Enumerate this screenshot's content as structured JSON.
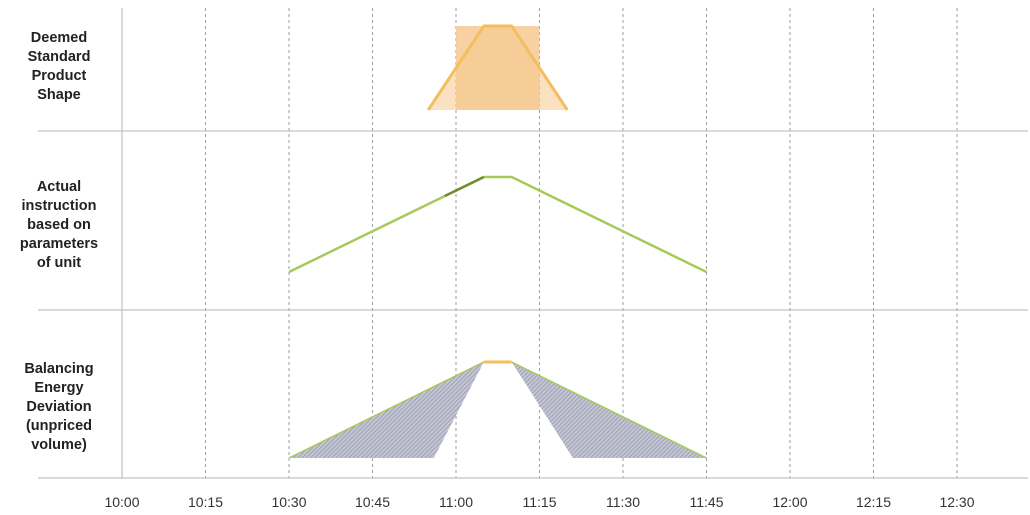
{
  "rows": [
    {
      "key": "deemed",
      "label_lines": [
        "Deemed",
        "Standard",
        "Product",
        "Shape"
      ]
    },
    {
      "key": "actual",
      "label_lines": [
        "Actual",
        "instruction",
        "based on",
        "parameters",
        "of unit"
      ]
    },
    {
      "key": "deviation",
      "label_lines": [
        "Balancing",
        "Energy",
        "Deviation",
        "(unpriced",
        "volume)"
      ]
    }
  ],
  "time_axis": {
    "ticks": [
      "10:00",
      "10:15",
      "10:30",
      "10:45",
      "11:00",
      "11:15",
      "11:30",
      "11:45",
      "12:00",
      "12:15",
      "12:30"
    ]
  },
  "series": {
    "deemed_shape": {
      "points": [
        [
          "10:55",
          0
        ],
        [
          "11:05",
          1
        ],
        [
          "11:10",
          1
        ],
        [
          "11:20",
          0
        ]
      ],
      "product_period": [
        "11:00",
        "11:15"
      ]
    },
    "actual_instruction": {
      "points": [
        [
          "10:30",
          0
        ],
        [
          "11:05",
          1
        ],
        [
          "11:10",
          1
        ],
        [
          "11:45",
          0
        ]
      ]
    },
    "deviation_left": {
      "points": [
        [
          "10:30",
          0
        ],
        [
          "11:05",
          1
        ],
        [
          "10:56",
          0
        ]
      ]
    },
    "deviation_right": {
      "points": [
        [
          "11:10",
          1
        ],
        [
          "11:45",
          0
        ],
        [
          "11:21",
          0
        ]
      ]
    }
  },
  "colors": {
    "deemed_line": "#f3be5e",
    "deemed_fill": "#f6c990",
    "actual_line": "#a8c958",
    "actual_line_dark": "#6f8d2d",
    "deviation_fill": "#a9abbd",
    "grid": "#9e9e9e",
    "row_divider": "#b5b5b5"
  }
}
